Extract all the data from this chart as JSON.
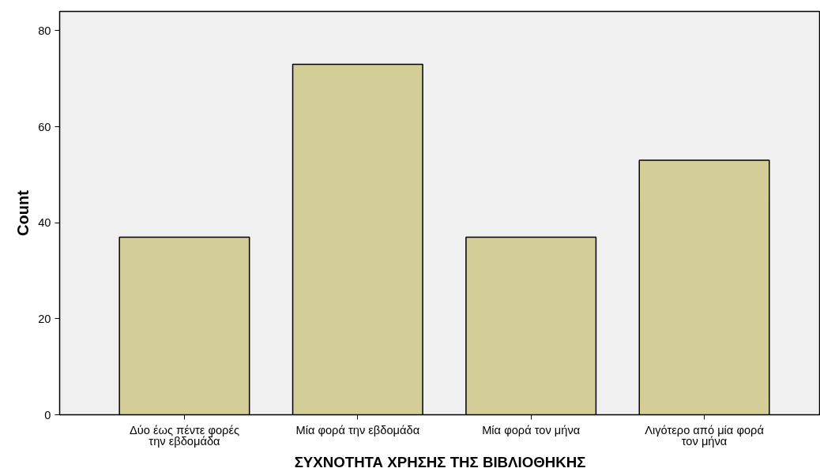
{
  "chart_data": {
    "type": "bar",
    "xlabel": "ΣΥΧΝΟΤΗΤΑ ΧΡΗΣΗΣ ΤΗΣ ΒΙΒΛΙΟΘΗΚΗΣ",
    "ylabel": "Count",
    "categories": [
      "Δύο έως πέντε φορές την εβδομάδα",
      "Μία φορά την εβδομάδα",
      "Μία φορά τον μήνα",
      "Λιγότερο από μία φορά τον μήνα"
    ],
    "values": [
      37,
      73,
      37,
      53
    ],
    "color": "#d3cd98",
    "ylim": [
      0,
      84
    ],
    "yticks": [
      0,
      20,
      40,
      60,
      80
    ],
    "grid": false
  }
}
